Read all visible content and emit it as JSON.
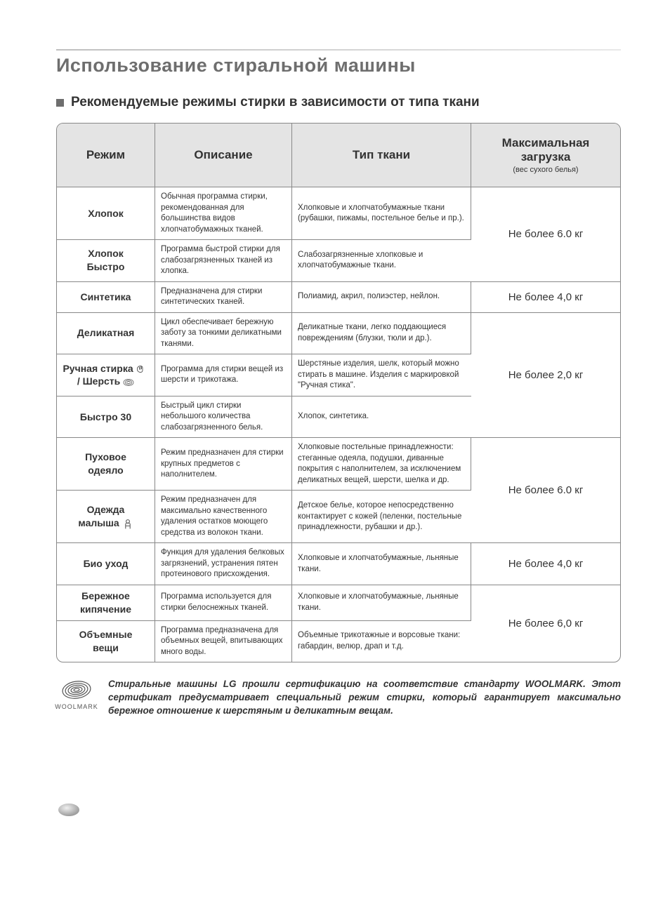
{
  "page": {
    "title": "Использование стиральной машины",
    "subheading": "Рекомендуемые режимы стирки в зависимости от типа ткани"
  },
  "table": {
    "headers": {
      "mode": "Режим",
      "description": "Описание",
      "fabric": "Тип ткани",
      "load_main": "Максимальная загрузка",
      "load_sub": "(вес сухого белья)"
    },
    "col_widths": {
      "mode": 140,
      "desc": 195,
      "fabric": 255
    },
    "header_bg": "#e4e4e4",
    "border_color": "#888888",
    "body_font_size": 11.5,
    "mode_font_size": 14,
    "load_font_size": 15,
    "rows": [
      {
        "mode": "Хлопок",
        "description": "Обычная программа стирки, рекомендованная для большинства видов хлопчатобумажных тканей.",
        "fabric": "Хлопковые и хлопчатобумажные ткани (рубашки, пижамы, постельное белье и пр.)."
      },
      {
        "mode": "Хлопок Быстро",
        "description": "Программа быстрой стирки для слабозагрязненных тканей из хлопка.",
        "fabric": "Слабозагрязненные хлопковые и хлопчатобумажные ткани."
      },
      {
        "mode": "Синтетика",
        "description": "Предназначена для стирки синтетических тканей.",
        "fabric": "Полиамид, акрил, полиэстер, нейлон."
      },
      {
        "mode": "Деликатная",
        "description": "Цикл обеспечивает бережную заботу за тонкими деликатными тканями.",
        "fabric": "Деликатные ткани, легко поддающиеся повреждениям (блузки, тюли и др.)."
      },
      {
        "mode_html": true,
        "mode_line1": "Ручная стирка",
        "mode_line2": "/ Шерсть",
        "description": "Программа для стирки вещей из шерсти и трикотажа.",
        "fabric": "Шерстяные изделия, шелк, который можно стирать в машине. Изделия с маркировкой \"Ручная стика\"."
      },
      {
        "mode": "Быстро 30",
        "description": "Быстрый цикл стирки небольшого количества слабозагрязненного белья.",
        "fabric": "Хлопок, синтетика."
      },
      {
        "mode": "Пуховое одеяло",
        "description": "Режим предназначен для стирки крупных предметов с наполнителем.",
        "fabric": "Хлопковые постельные принадлежности: стеганные одеяла, подушки, диванные покрытия с наполнителем, за исключением деликатных вещей, шерсти, шелка и др."
      },
      {
        "mode_html": true,
        "mode_line1": "Одежда",
        "mode_line2": "малыша",
        "baby_icon": true,
        "description": "Режим предназначен для максимально качественного удаления остатков моющего средства из волокон ткани.",
        "fabric": "Детское белье, которое непосредственно контактирует с кожей (пеленки, постельные принадлежности, рубашки и др.)."
      },
      {
        "mode": "Био уход",
        "description": "Функция для удаления белковых загрязнений, устранения пятен протеинового присхождения.",
        "fabric": "Хлопковые и хлопчатобумажные, льняные ткани."
      },
      {
        "mode": "Бережное кипячение",
        "description": "Программа используется для стирки белоснежных тканей.",
        "fabric": "Хлопковые и хлопчатобумажные, льняные ткани."
      },
      {
        "mode": "Объемные вещи",
        "description": "Программа предназначена для объемных вещей, впитывающих много воды.",
        "fabric": "Объемные трикотажные и ворсовые ткани: габардин, велюр, драп и т.д."
      }
    ],
    "load_groups": [
      {
        "rowspan": 2,
        "text": "Не более 6.0 кг"
      },
      {
        "rowspan": 1,
        "text": "Не более 4,0 кг"
      },
      {
        "rowspan": 3,
        "text": "Не более 2,0 кг"
      },
      {
        "rowspan": 2,
        "text": "Не более 6.0 кг"
      },
      {
        "rowspan": 1,
        "text": "Не более 4,0 кг"
      },
      {
        "rowspan": 2,
        "text": "Не более 6,0 кг"
      }
    ]
  },
  "woolmark": {
    "label": "WOOLMARK",
    "text": "Стиральные машины LG прошли сертификацию на соответствие стандарту WOOLMARK. Этот сертификат предусматривает специальный режим стирки, который гарантирует максимально бережное отношение к шерстяным и деликатным вещам."
  },
  "colors": {
    "title_color": "#6e6e6e",
    "text_color": "#333333",
    "background": "#ffffff"
  }
}
